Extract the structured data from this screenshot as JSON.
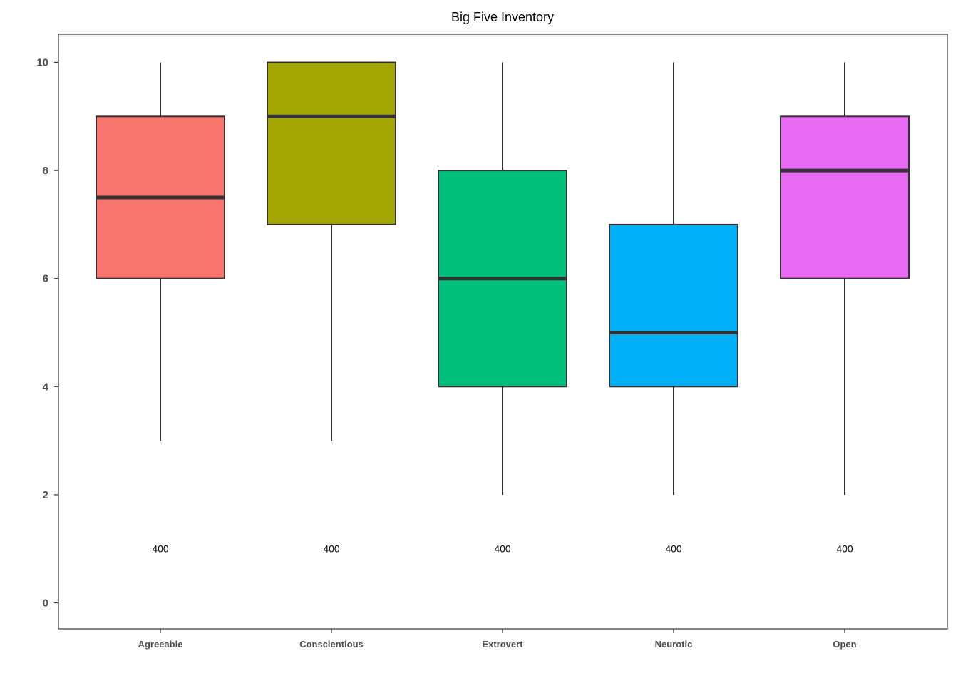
{
  "chart_data": {
    "type": "box",
    "title": "Big Five Inventory",
    "xlabel": "",
    "ylabel": "",
    "ylim": [
      -0.5,
      10.5
    ],
    "y_ticks": [
      "0",
      "2",
      "4",
      "6",
      "8",
      "10"
    ],
    "grid": false,
    "legend": "none",
    "categories": [
      "Agreeable",
      "Conscientious",
      "Extrovert",
      "Neurotic",
      "Open"
    ],
    "boxes": [
      {
        "category": "Agreeable",
        "min": 3,
        "q1": 6,
        "median": 7.5,
        "q3": 9,
        "max": 10,
        "n": "400",
        "color": "#F8766D"
      },
      {
        "category": "Conscientious",
        "min": 3,
        "q1": 7,
        "median": 9,
        "q3": 10,
        "max": 10,
        "n": "400",
        "color": "#A3A500"
      },
      {
        "category": "Extrovert",
        "min": 2,
        "q1": 4,
        "median": 6,
        "q3": 8,
        "max": 10,
        "n": "400",
        "color": "#00BF7D"
      },
      {
        "category": "Neurotic",
        "min": 2,
        "q1": 4,
        "median": 5,
        "q3": 7,
        "max": 10,
        "n": "400",
        "color": "#00B0F6"
      },
      {
        "category": "Open",
        "min": 2,
        "q1": 6,
        "median": 8,
        "q3": 9,
        "max": 10,
        "n": "400",
        "color": "#E76BF3"
      }
    ],
    "count_label_y": 1
  }
}
